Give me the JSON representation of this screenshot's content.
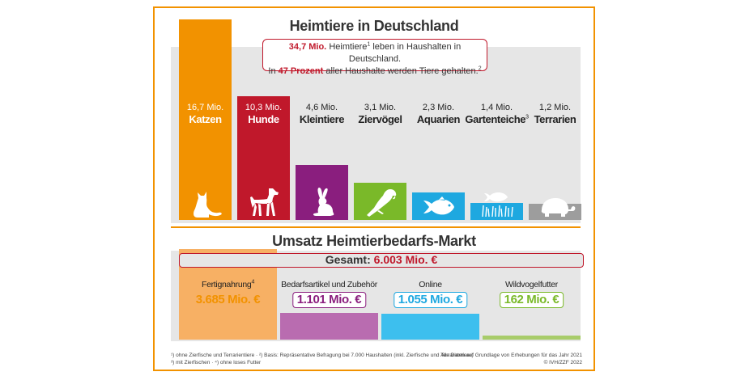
{
  "colors": {
    "frame": "#f29200",
    "grey": "#e6e6e6",
    "accent_red": "#c0182b",
    "katzen": "#f29200",
    "hunde": "#c0182b",
    "kleintiere": "#8a1e7e",
    "ziervoegel": "#7ab929",
    "aquarien": "#1ea8e0",
    "gartenteiche": "#1ea8e0",
    "terrarien": "#9d9d9d",
    "fertignahrung": "#f7b064",
    "bedarfsartikel": "#b96cb0",
    "online": "#3dbfee",
    "wildvogelfutter": "#a8cc6a"
  },
  "chart_data": [
    {
      "type": "bar",
      "title": "Heimtiere in Deutschland",
      "unit": "Mio.",
      "categories": [
        "Katzen",
        "Hunde",
        "Kleintiere",
        "Ziervögel",
        "Aquarien",
        "Gartenteiche",
        "Terrarien"
      ],
      "values": [
        16.7,
        10.3,
        4.6,
        3.1,
        2.3,
        1.4,
        1.2
      ],
      "value_labels": [
        "16,7 Mio.",
        "10,3 Mio.",
        "4,6 Mio.",
        "3,1 Mio.",
        "2,3 Mio.",
        "1,4 Mio.",
        "1,2 Mio."
      ],
      "category_sup": [
        "",
        "",
        "",
        "",
        "",
        "3",
        ""
      ],
      "icons": [
        "cat-icon",
        "dog-icon",
        "rabbit-icon",
        "parrot-icon",
        "fish-icon",
        "pond-fish-icon",
        "turtle-icon"
      ],
      "bar_colors": [
        "#f29200",
        "#c0182b",
        "#8a1e7e",
        "#7ab929",
        "#1ea8e0",
        "#1ea8e0",
        "#9d9d9d"
      ],
      "ylim": [
        0,
        16.7
      ],
      "info": {
        "line1_value": "34,7 Mio.",
        "line1_word": "Heimtiere",
        "line1_sup": "1",
        "line1_rest": "leben in Haushalten in Deutschland.",
        "line2_pre": "In",
        "line2_value": "47 Prozent",
        "line2_rest": "aller Haushalte werden Tiere gehalten.",
        "line2_sup": "2"
      }
    },
    {
      "type": "bar",
      "title": "Umsatz Heimtierbedarfs-Markt",
      "total_label": "Gesamt:",
      "total_value": "6.003 Mio. €",
      "total": 6003,
      "categories": [
        "Fertignahrung",
        "Bedarfsartikel und Zubehör",
        "Online",
        "Wildvogelfutter"
      ],
      "category_sup": [
        "4",
        "",
        "",
        ""
      ],
      "values": [
        3685,
        1101,
        1055,
        162
      ],
      "value_labels": [
        "3.685 Mio. €",
        "1.101 Mio. €",
        "1.055 Mio. €",
        "162 Mio. €"
      ],
      "colors": [
        "#f7b064",
        "#b96cb0",
        "#3dbfee",
        "#a8cc6a"
      ],
      "value_text_colors": [
        "#f29200",
        "#8a1e7e",
        "#1ea8e0",
        "#7ab929"
      ]
    }
  ],
  "footnotes": {
    "left_line1": "¹) ohne Zierfische und Terrarientiere · ²) Basis: Repräsentative Befragung bei 7.000 Haushalten (inkl. Zierfische und Terrarientiere)",
    "left_line2": "³) mit Zierfischen · ⁴) ohne loses Futter",
    "right_line1": "Alle Daten auf Grundlage von Erhebungen für das Jahr 2021",
    "right_line2": "© IVH/ZZF 2022"
  }
}
